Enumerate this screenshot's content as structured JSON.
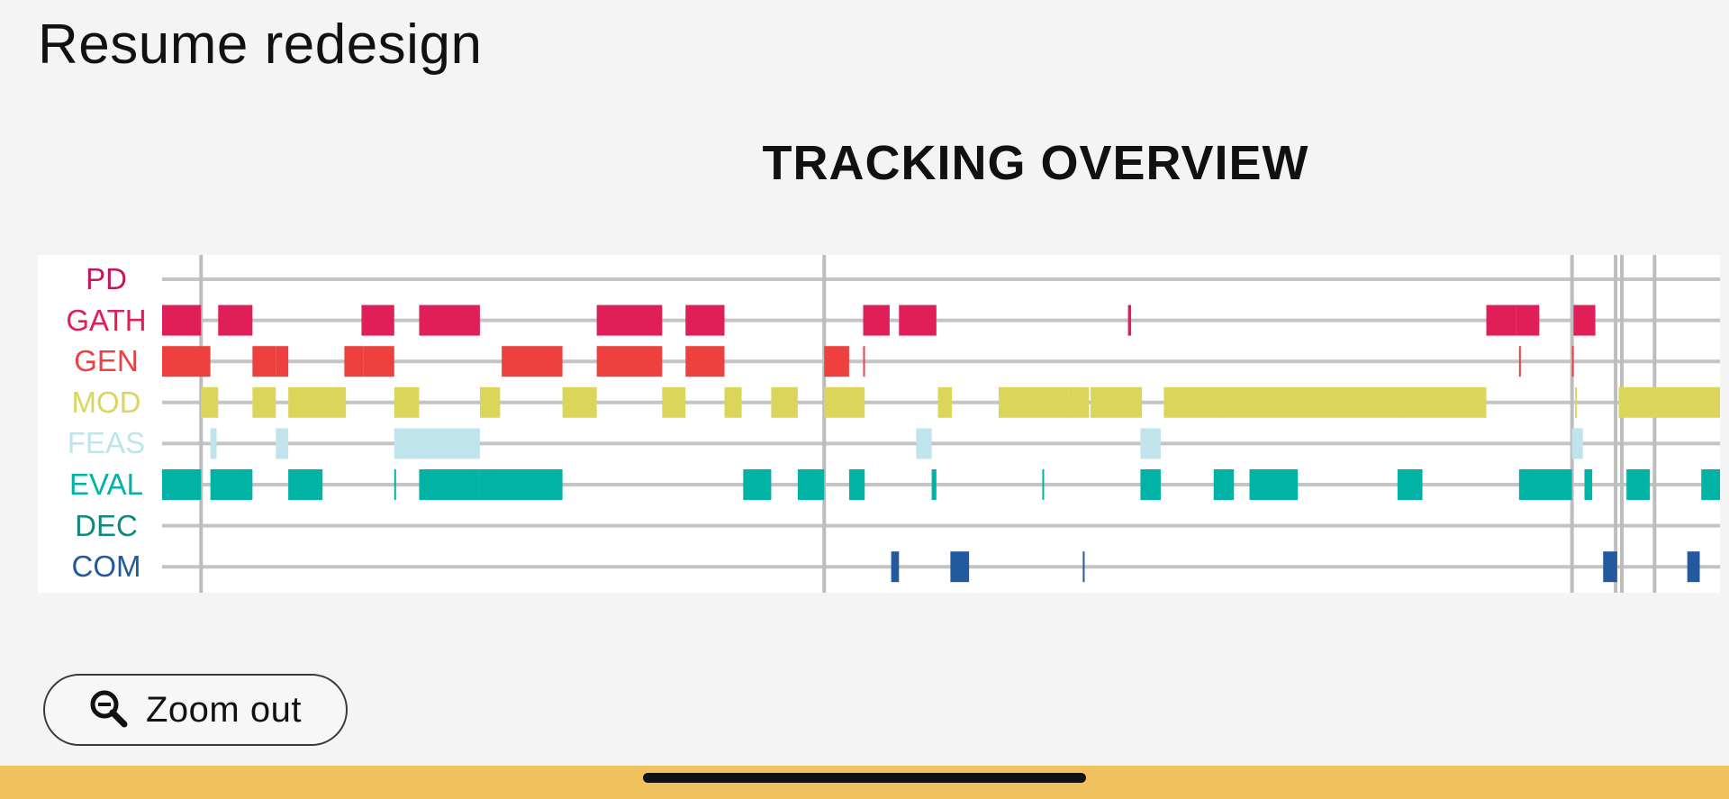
{
  "page": {
    "title": "Resume redesign"
  },
  "zoom_button": {
    "label": "Zoom out",
    "icon": "zoom-out-icon"
  },
  "chart_data": {
    "type": "timeline",
    "title": "TRACKING OVERVIEW",
    "x_range": [
      0,
      1000
    ],
    "markers": [
      25,
      425,
      905,
      933,
      937,
      958
    ],
    "rows": [
      {
        "id": "PD",
        "label": "PD",
        "color": "#c2185b",
        "segments": []
      },
      {
        "id": "GATH",
        "label": "GATH",
        "color": "#e01e57",
        "segments": [
          [
            0,
            25
          ],
          [
            36,
            58
          ],
          [
            128,
            149
          ],
          [
            165,
            204
          ],
          [
            279,
            321
          ],
          [
            336,
            361
          ],
          [
            450,
            467
          ],
          [
            473,
            497
          ],
          [
            620,
            622
          ],
          [
            850,
            869
          ],
          [
            869,
            884
          ],
          [
            906,
            920
          ]
        ]
      },
      {
        "id": "GEN",
        "label": "GEN",
        "color": "#ef4040",
        "segments": [
          [
            0,
            31
          ],
          [
            58,
            73
          ],
          [
            73,
            81
          ],
          [
            117,
            129
          ],
          [
            129,
            149
          ],
          [
            218,
            257
          ],
          [
            279,
            321
          ],
          [
            336,
            361
          ],
          [
            425,
            441
          ],
          [
            450,
            451
          ],
          [
            871,
            872
          ],
          [
            905,
            906
          ]
        ]
      },
      {
        "id": "MOD",
        "label": "MOD",
        "color": "#dcd55c",
        "segments": [
          [
            25,
            36
          ],
          [
            58,
            73
          ],
          [
            81,
            118
          ],
          [
            149,
            165
          ],
          [
            204,
            217
          ],
          [
            257,
            279
          ],
          [
            321,
            336
          ],
          [
            361,
            372
          ],
          [
            391,
            408
          ],
          [
            425,
            451
          ],
          [
            498,
            507
          ],
          [
            537,
            582
          ],
          [
            582,
            595
          ],
          [
            596,
            629
          ],
          [
            643,
            678
          ],
          [
            678,
            796
          ],
          [
            796,
            850
          ],
          [
            907,
            908
          ],
          [
            935,
            1000
          ]
        ]
      },
      {
        "id": "FEAS",
        "label": "FEAS",
        "color": "#c0e4ec",
        "segments": [
          [
            31,
            35
          ],
          [
            73,
            81
          ],
          [
            149,
            204
          ],
          [
            484,
            494
          ],
          [
            628,
            641
          ],
          [
            905,
            912
          ]
        ]
      },
      {
        "id": "EVAL",
        "label": "EVAL",
        "color": "#00b3a4",
        "segments": [
          [
            0,
            25
          ],
          [
            31,
            58
          ],
          [
            81,
            103
          ],
          [
            149,
            150
          ],
          [
            165,
            204
          ],
          [
            204,
            257
          ],
          [
            373,
            391
          ],
          [
            408,
            425
          ],
          [
            441,
            451
          ],
          [
            494,
            497
          ],
          [
            565,
            566
          ],
          [
            628,
            641
          ],
          [
            675,
            688
          ],
          [
            698,
            729
          ],
          [
            793,
            809
          ],
          [
            871,
            905
          ],
          [
            913,
            918
          ],
          [
            940,
            955
          ],
          [
            988,
            1000
          ]
        ]
      },
      {
        "id": "DEC",
        "label": "DEC",
        "color": "#11897a",
        "segments": []
      },
      {
        "id": "COM",
        "label": "COM",
        "color": "#235a9e",
        "segments": [
          [
            468,
            473
          ],
          [
            506,
            518
          ],
          [
            591,
            592
          ],
          [
            925,
            934
          ],
          [
            979,
            987
          ]
        ]
      }
    ]
  }
}
